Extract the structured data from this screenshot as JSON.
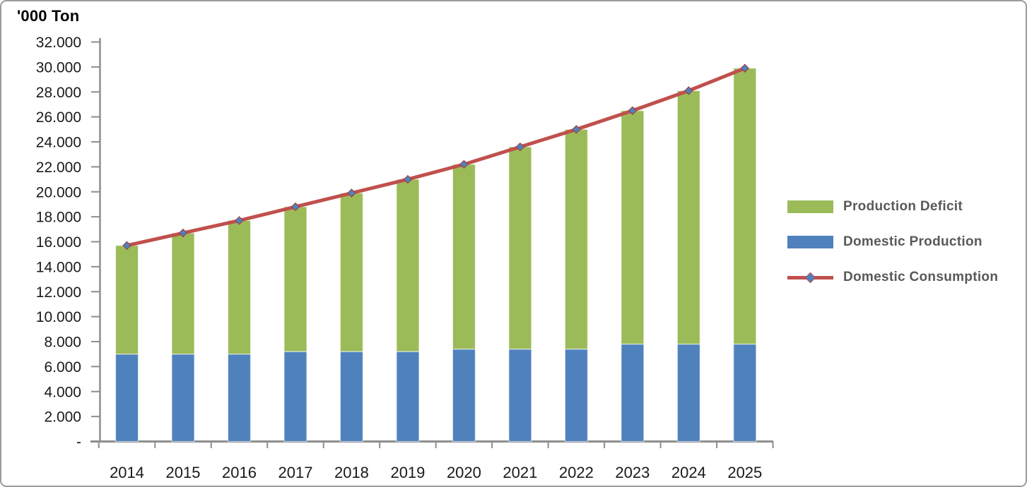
{
  "chart_data": {
    "type": "bar",
    "subtype": "stacked-bar-with-line",
    "title": "",
    "y_axis_title": "'000 Ton",
    "categories": [
      "2014",
      "2015",
      "2016",
      "2017",
      "2018",
      "2019",
      "2020",
      "2021",
      "2022",
      "2023",
      "2024",
      "2025"
    ],
    "series": [
      {
        "name": "Domestic Production",
        "chart_type": "bar",
        "stack": "total",
        "color": "#4F81BD",
        "values": [
          7000,
          7000,
          7000,
          7200,
          7200,
          7200,
          7400,
          7400,
          7400,
          7800,
          7800,
          7800
        ]
      },
      {
        "name": "Production Deficit",
        "chart_type": "bar",
        "stack": "total",
        "color": "#9BBB59",
        "values": [
          8700,
          9700,
          10700,
          11600,
          12700,
          13800,
          14800,
          16200,
          17600,
          18700,
          20300,
          22100
        ]
      },
      {
        "name": "Domestic Consumption",
        "chart_type": "line",
        "color": "#C0504D",
        "marker": "diamond",
        "marker_fill": "#4F81BD",
        "values": [
          15700,
          16700,
          17700,
          18800,
          19900,
          21000,
          22200,
          23600,
          25000,
          26500,
          28100,
          29900
        ]
      }
    ],
    "ylim": [
      0,
      32000
    ],
    "y_tick_step": 2000,
    "y_tick_labels": [
      "-",
      "2.000",
      "4.000",
      "6.000",
      "8.000",
      "10.000",
      "12.000",
      "14.000",
      "16.000",
      "18.000",
      "20.000",
      "22.000",
      "24.000",
      "26.000",
      "28.000",
      "30.000",
      "32.000"
    ],
    "grid": false,
    "legend_position": "right"
  },
  "legend": {
    "items": [
      {
        "label": "Production Deficit",
        "swatch": "rect",
        "color": "#9BBB59"
      },
      {
        "label": "Domestic Production",
        "swatch": "rect",
        "color": "#4F81BD"
      },
      {
        "label": "Domestic Consumption",
        "swatch": "line-diamond",
        "color": "#C0504D",
        "marker_fill": "#4F81BD"
      }
    ]
  },
  "colors": {
    "axis_line": "#8E8E8E",
    "axis_label": "#1A1A1A",
    "legend_text": "#595959",
    "bar_edge": "rgba(255,255,255,0.6)",
    "marker_edge": "#9E3A36",
    "frame_border": "#9C9C9C"
  }
}
